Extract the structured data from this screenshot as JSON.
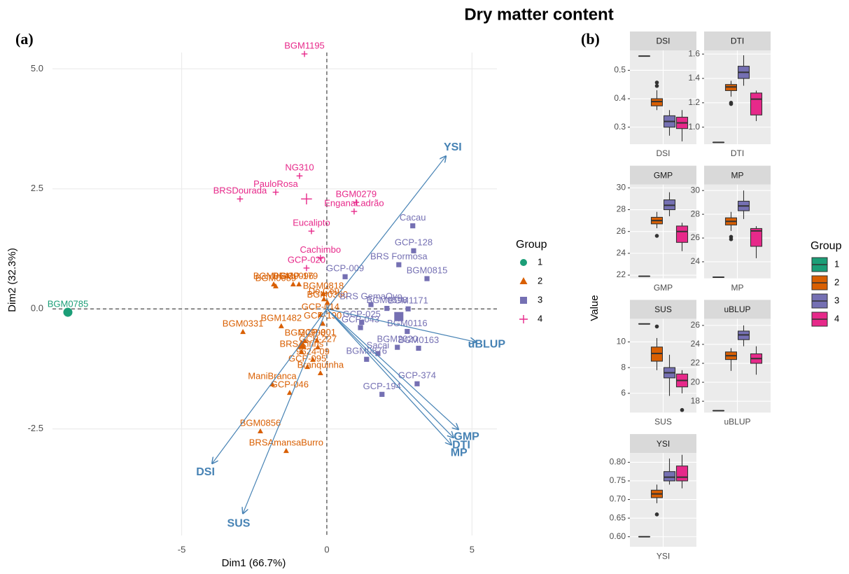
{
  "title": "Dry matter content",
  "panel_labels": [
    "(a)",
    "(b)"
  ],
  "chart_data": [
    {
      "type": "biplot",
      "x_label": "Dim1 (66.7%)",
      "y_label": "Dim2 (32.3%)",
      "xlim": [
        -9.45,
        5.86
      ],
      "ylim": [
        -4.72,
        5.34
      ],
      "xticks": [
        -5,
        0,
        5
      ],
      "yticks": [
        -2.5,
        {
          "value": 0,
          "label": "0.0"
        },
        2.5,
        {
          "value": 5,
          "label": "5.0"
        }
      ],
      "grid": true,
      "legend_title": "Group",
      "series": [
        {
          "name": "1",
          "color": "#1b9e77",
          "marker": "circle",
          "labels": [
            "BGM0785"
          ],
          "x": [
            -8.92
          ],
          "y": [
            -0.07
          ],
          "centroid": [
            -8.92,
            -0.07
          ]
        },
        {
          "name": "2",
          "color": "#d95f02",
          "marker": "triangle",
          "labels": [
            "BGM0096",
            "BGM0541",
            "GCP-179",
            "BGM0089",
            "BGM0818",
            "Do Céu",
            "BGM0360",
            "GCP-014",
            "BGM1482",
            "GCP-190",
            "BGM0331",
            "BGM0908",
            "GCP-001",
            "GCP-227",
            "BRS Kiriris",
            "9624-09",
            "GCP-095",
            "Branquinha",
            "ManiBranca",
            "GCP-046",
            "BGM0856",
            "BRSAmansaBurro"
          ],
          "x": [
            -1.16,
            -1.83,
            -0.96,
            -1.76,
            -0.12,
            -0.1,
            0.02,
            -0.22,
            -1.57,
            -0.14,
            -2.89,
            -0.75,
            -0.34,
            -0.31,
            -0.87,
            -0.48,
            -0.67,
            -0.22,
            -1.88,
            -1.28,
            -2.29,
            -1.4
          ],
          "y": [
            0.51,
            0.51,
            0.51,
            0.47,
            0.31,
            0.2,
            0.13,
            -0.13,
            -0.36,
            -0.31,
            -0.48,
            -0.67,
            -0.66,
            -0.8,
            -0.9,
            -1.06,
            -1.21,
            -1.34,
            -1.57,
            -1.75,
            -2.55,
            -2.96
          ],
          "centroid": [
            -0.87,
            -0.76
          ]
        },
        {
          "name": "3",
          "color": "#7570b3",
          "marker": "square",
          "labels": [
            "Cacau",
            "GCP-128",
            "BRS Formosa",
            "BGM0815",
            "GCP-009",
            "BRS GemaOvo",
            "BGM0598",
            "BGM1171",
            "GCP-025",
            "GCP-043",
            "BGM0116",
            "Sacai",
            "BGM0163",
            "BGM2020",
            "BGM0876",
            "GCP-374",
            "GCP-194"
          ],
          "x": [
            2.96,
            2.99,
            2.48,
            3.45,
            0.63,
            1.52,
            2.07,
            2.8,
            1.2,
            1.16,
            2.77,
            1.76,
            3.16,
            2.43,
            1.37,
            3.11,
            1.9
          ],
          "y": [
            1.73,
            1.21,
            0.92,
            0.63,
            0.67,
            0.09,
            0.01,
            0.0,
            -0.28,
            -0.39,
            -0.47,
            -0.93,
            -0.82,
            -0.8,
            -1.05,
            -1.56,
            -1.78
          ],
          "centroid": [
            2.48,
            -0.16
          ]
        },
        {
          "name": "4",
          "color": "#e7298a",
          "marker": "plus",
          "labels": [
            "BGM1195",
            "NG310",
            "PauloRosa",
            "BRSDourada",
            "BGM0279",
            "EnganaLadrão",
            "Eucalipto",
            "Cachimbo",
            "GCP-020"
          ],
          "x": [
            -0.77,
            -0.94,
            -1.76,
            -2.99,
            1.01,
            0.94,
            -0.53,
            -0.22,
            -0.7
          ],
          "y": [
            5.31,
            2.77,
            2.43,
            2.29,
            2.22,
            2.03,
            1.62,
            1.06,
            0.85
          ],
          "centroid": [
            -0.7,
            2.29
          ]
        }
      ],
      "vectors": {
        "color": "#4682b4",
        "labels": [
          "YSI",
          "uBLUP",
          "GMP",
          "DTI",
          "MP",
          "DSI",
          "SUS"
        ],
        "x": [
          4.1,
          5.13,
          4.53,
          4.36,
          4.29,
          -3.95,
          -2.89
        ],
        "y": [
          3.18,
          -0.69,
          -2.51,
          -2.68,
          -2.83,
          -3.22,
          -4.26
        ]
      }
    },
    {
      "type": "boxplot",
      "y_label": "Value",
      "legend_title": "Group",
      "groups": [
        "1",
        "2",
        "3",
        "4"
      ],
      "colors": [
        "#1b9e77",
        "#d95f02",
        "#7570b3",
        "#e7298a"
      ],
      "facets": [
        {
          "name": "DSI",
          "ylim": [
            0.24,
            0.57
          ],
          "yticks": [
            0.3,
            0.4,
            0.5
          ],
          "boxes": [
            {
              "min": 0.55,
              "q1": 0.55,
              "median": 0.55,
              "q3": 0.55,
              "max": 0.55,
              "outliers": []
            },
            {
              "min": 0.36,
              "q1": 0.375,
              "median": 0.39,
              "q3": 0.4,
              "max": 0.43,
              "outliers": [
                0.445,
                0.457
              ]
            },
            {
              "min": 0.27,
              "q1": 0.3,
              "median": 0.32,
              "q3": 0.34,
              "max": 0.36,
              "outliers": []
            },
            {
              "min": 0.25,
              "q1": 0.295,
              "median": 0.315,
              "q3": 0.335,
              "max": 0.36,
              "outliers": []
            }
          ]
        },
        {
          "name": "DTI",
          "ylim": [
            0.86,
            1.63
          ],
          "yticks": [
            {
              "value": 1.0,
              "label": "1.0"
            },
            1.2,
            1.4,
            1.6
          ],
          "boxes": [
            {
              "min": 0.875,
              "q1": 0.875,
              "median": 0.875,
              "q3": 0.875,
              "max": 0.875,
              "outliers": []
            },
            {
              "min": 1.25,
              "q1": 1.3,
              "median": 1.33,
              "q3": 1.35,
              "max": 1.38,
              "outliers": [
                1.2,
                1.19
              ]
            },
            {
              "min": 1.34,
              "q1": 1.4,
              "median": 1.45,
              "q3": 1.5,
              "max": 1.59,
              "outliers": []
            },
            {
              "min": 1.05,
              "q1": 1.1,
              "median": 1.23,
              "q3": 1.28,
              "max": 1.3,
              "outliers": []
            }
          ]
        },
        {
          "name": "GMP",
          "ylim": [
            21.7,
            30.3
          ],
          "yticks": [
            22,
            24,
            26,
            28,
            30
          ],
          "boxes": [
            {
              "min": 21.9,
              "q1": 21.9,
              "median": 21.9,
              "q3": 21.9,
              "max": 21.9,
              "outliers": []
            },
            {
              "min": 26.3,
              "q1": 26.7,
              "median": 27.0,
              "q3": 27.3,
              "max": 27.8,
              "outliers": [
                25.6
              ]
            },
            {
              "min": 27.4,
              "q1": 28.0,
              "median": 28.4,
              "q3": 28.9,
              "max": 29.6,
              "outliers": []
            },
            {
              "min": 24.2,
              "q1": 25.0,
              "median": 26.0,
              "q3": 26.5,
              "max": 26.8,
              "outliers": []
            }
          ]
        },
        {
          "name": "MP",
          "ylim": [
            22.6,
            30.5
          ],
          "yticks": [
            24,
            26,
            28,
            30
          ],
          "boxes": [
            {
              "min": 22.7,
              "q1": 22.7,
              "median": 22.7,
              "q3": 22.7,
              "max": 22.7,
              "outliers": []
            },
            {
              "min": 26.6,
              "q1": 27.1,
              "median": 27.4,
              "q3": 27.7,
              "max": 28.2,
              "outliers": [
                26.1,
                25.9
              ]
            },
            {
              "min": 27.6,
              "q1": 28.3,
              "median": 28.7,
              "q3": 29.1,
              "max": 30.0,
              "outliers": []
            },
            {
              "min": 24.3,
              "q1": 25.3,
              "median": 26.6,
              "q3": 26.8,
              "max": 27.0,
              "outliers": []
            }
          ]
        },
        {
          "name": "SUS",
          "ylim": [
            4.5,
            11.8
          ],
          "yticks": [
            6,
            8,
            10
          ],
          "boxes": [
            {
              "min": 11.4,
              "q1": 11.4,
              "median": 11.4,
              "q3": 11.4,
              "max": 11.4,
              "outliers": []
            },
            {
              "min": 7.8,
              "q1": 8.5,
              "median": 9.1,
              "q3": 9.6,
              "max": 10.3,
              "outliers": [
                11.2
              ]
            },
            {
              "min": 5.8,
              "q1": 7.2,
              "median": 7.6,
              "q3": 8.0,
              "max": 9.0,
              "outliers": []
            },
            {
              "min": 6.0,
              "q1": 6.5,
              "median": 7.0,
              "q3": 7.5,
              "max": 7.8,
              "outliers": [
                4.7
              ]
            }
          ]
        },
        {
          "name": "uBLUP",
          "ylim": [
            16.8,
            26.7
          ],
          "yticks": [
            18,
            20,
            22,
            24,
            26
          ],
          "boxes": [
            {
              "min": 17.0,
              "q1": 17.0,
              "median": 17.0,
              "q3": 17.0,
              "max": 17.0,
              "outliers": []
            },
            {
              "min": 21.2,
              "q1": 22.4,
              "median": 22.8,
              "q3": 23.2,
              "max": 23.6,
              "outliers": []
            },
            {
              "min": 23.8,
              "q1": 24.5,
              "median": 25.0,
              "q3": 25.4,
              "max": 26.0,
              "outliers": []
            },
            {
              "min": 20.8,
              "q1": 22.0,
              "median": 22.5,
              "q3": 23.0,
              "max": 23.8,
              "outliers": []
            }
          ]
        },
        {
          "name": "YSI",
          "ylim": [
            0.573,
            0.825
          ],
          "yticks": [
            {
              "value": 0.6,
              "label": "0.60"
            },
            {
              "value": 0.65,
              "label": "0.65"
            },
            {
              "value": 0.7,
              "label": "0.70"
            },
            {
              "value": 0.75,
              "label": "0.75"
            },
            {
              "value": 0.8,
              "label": "0.80"
            }
          ],
          "boxes": [
            {
              "min": 0.6,
              "q1": 0.6,
              "median": 0.6,
              "q3": 0.6,
              "max": 0.6,
              "outliers": []
            },
            {
              "min": 0.69,
              "q1": 0.705,
              "median": 0.715,
              "q3": 0.725,
              "max": 0.74,
              "outliers": [
                0.66
              ]
            },
            {
              "min": 0.74,
              "q1": 0.75,
              "median": 0.76,
              "q3": 0.775,
              "max": 0.81,
              "outliers": []
            },
            {
              "min": 0.73,
              "q1": 0.75,
              "median": 0.76,
              "q3": 0.79,
              "max": 0.82,
              "outliers": []
            }
          ]
        }
      ]
    }
  ]
}
